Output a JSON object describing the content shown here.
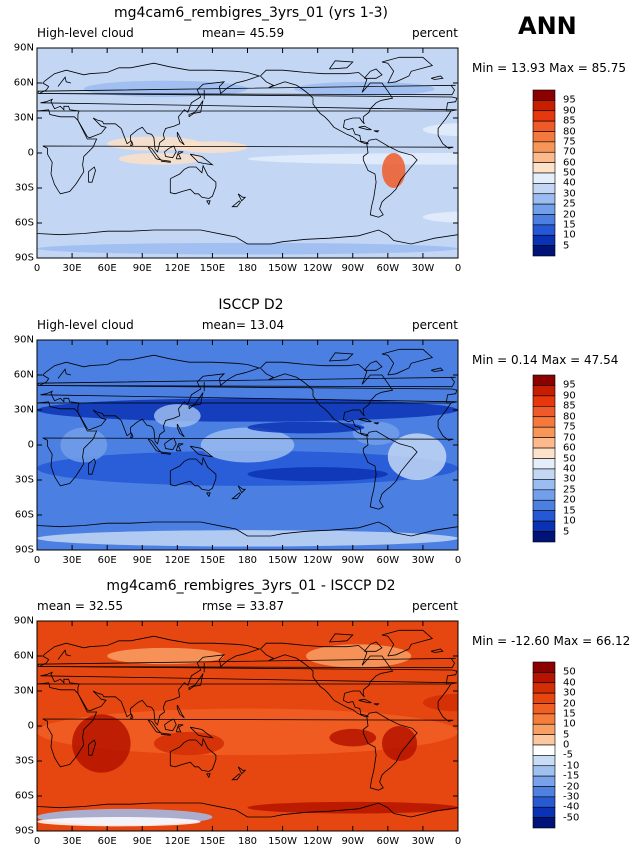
{
  "annotation": "ANN",
  "panels": [
    {
      "title": "mg4cam6_rembigres_3yrs_01 (yrs 1-3)",
      "left_label": "High-level cloud",
      "center_label": "mean=  45.59",
      "right_label": "percent",
      "minmax": "Min =   13.93 Max =   85.75",
      "colorbar_labels": [
        "95",
        "90",
        "85",
        "80",
        "75",
        "70",
        "60",
        "50",
        "40",
        "30",
        "25",
        "20",
        "15",
        "10",
        "5"
      ],
      "colors": [
        "#8b0000",
        "#c81e00",
        "#e6370f",
        "#f05a28",
        "#f5783c",
        "#f8965a",
        "#fbb98c",
        "#fde1c8",
        "#e4eefa",
        "#c3d7f5",
        "#9bbcf0",
        "#729fea",
        "#4b7fe2",
        "#2458d6",
        "#0a32b4",
        "#001478"
      ],
      "style": "model"
    },
    {
      "title": "ISCCP D2",
      "left_label": "High-level cloud",
      "center_label": "mean=  13.04",
      "right_label": "percent",
      "minmax": "Min =    0.14 Max =   47.54",
      "colorbar_labels": [
        "95",
        "90",
        "85",
        "80",
        "75",
        "70",
        "60",
        "50",
        "40",
        "30",
        "25",
        "20",
        "15",
        "10",
        "5"
      ],
      "colors": [
        "#8b0000",
        "#c81e00",
        "#e6370f",
        "#f05a28",
        "#f5783c",
        "#f8965a",
        "#fbb98c",
        "#fde1c8",
        "#e4eefa",
        "#c3d7f5",
        "#9bbcf0",
        "#729fea",
        "#4b7fe2",
        "#2458d6",
        "#0a32b4",
        "#001478"
      ],
      "style": "obs"
    },
    {
      "title": "mg4cam6_rembigres_3yrs_01 - ISCCP D2",
      "left_label": "mean =   32.55",
      "center_label": "rmse =   33.87",
      "right_label": "percent",
      "minmax": "Min = -12.60 Max =   66.12",
      "colorbar_labels": [
        "50",
        "40",
        "30",
        "20",
        "15",
        "10",
        "5",
        "0",
        "-5",
        "-10",
        "-15",
        "-20",
        "-30",
        "-40",
        "-50"
      ],
      "colors": [
        "#8b0000",
        "#b41400",
        "#d22d05",
        "#e6460f",
        "#f05f23",
        "#f57d3c",
        "#f8a064",
        "#fcc8a0",
        "#ffffff",
        "#c8dcf8",
        "#a0c0f0",
        "#7aa2ea",
        "#5080e0",
        "#285ad4",
        "#0a32b4",
        "#001478"
      ],
      "style": "diff"
    }
  ],
  "lat_ticks": [
    "90N",
    "60N",
    "30N",
    "0",
    "30S",
    "60S",
    "90S"
  ],
  "lon_ticks": [
    "0",
    "30E",
    "60E",
    "90E",
    "120E",
    "150E",
    "180",
    "150W",
    "120W",
    "90W",
    "60W",
    "30W",
    "0"
  ]
}
